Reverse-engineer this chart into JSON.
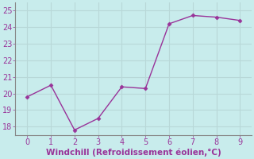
{
  "x": [
    0,
    1,
    2,
    3,
    4,
    5,
    6,
    7,
    8,
    9
  ],
  "y": [
    19.8,
    20.5,
    17.8,
    18.5,
    20.4,
    20.3,
    24.2,
    24.7,
    24.6,
    24.4
  ],
  "line_color": "#993399",
  "marker": "D",
  "marker_size": 2.5,
  "xlabel": "Windchill (Refroidissement éolien,°C)",
  "xlabel_color": "#993399",
  "xlabel_fontsize": 7.5,
  "ylim": [
    17.5,
    25.5
  ],
  "xlim": [
    -0.5,
    9.5
  ],
  "yticks": [
    18,
    19,
    20,
    21,
    22,
    23,
    24,
    25
  ],
  "xticks": [
    0,
    1,
    2,
    3,
    4,
    5,
    6,
    7,
    8,
    9
  ],
  "grid_color": "#b8d8d8",
  "background_color": "#c8ecec",
  "tick_color": "#993399",
  "tick_fontsize": 7,
  "spine_color": "#888888",
  "line_width": 1.0
}
